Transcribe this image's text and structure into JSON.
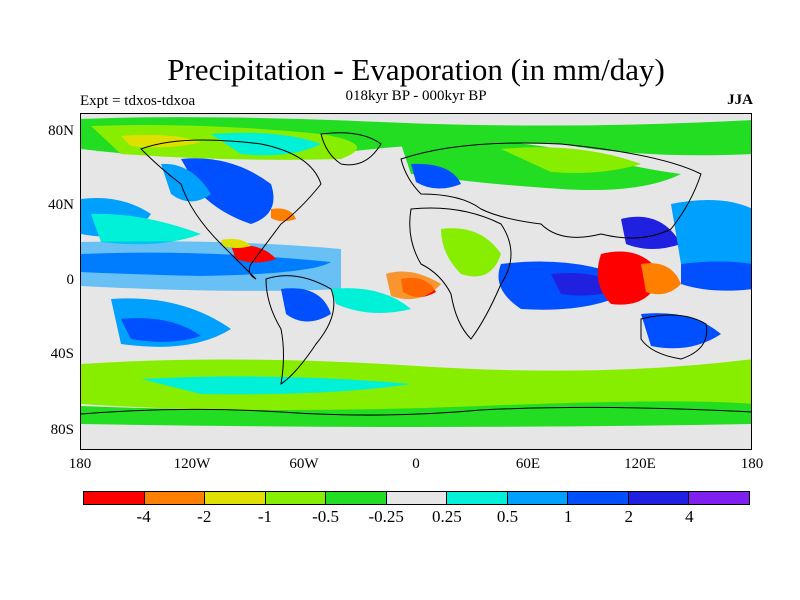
{
  "title": "Precipitation - Evaporation (in mm/day)",
  "subtitle": "018kyr BP - 000kyr BP",
  "expt_label": "Expt = tdxos-tdxoa",
  "season": "JJA",
  "y_ticks": [
    "80N",
    "40N",
    "0",
    "40S",
    "80S"
  ],
  "x_ticks": [
    "180",
    "120W",
    "60W",
    "0",
    "60E",
    "120E",
    "180"
  ],
  "colorbar": {
    "colors": [
      "#ff0000",
      "#ff8000",
      "#e0e000",
      "#88ee00",
      "#22dd22",
      "#e6e6e6",
      "#00f0d8",
      "#00a0ff",
      "#0050ff",
      "#2020e0",
      "#8020f0"
    ],
    "labels": [
      "-4",
      "-2",
      "-1",
      "-0.5",
      "-0.25",
      "0.25",
      "0.5",
      "1",
      "2",
      "4"
    ]
  },
  "map": {
    "background": "#e6e6e6",
    "coastline_color": "#000000"
  }
}
